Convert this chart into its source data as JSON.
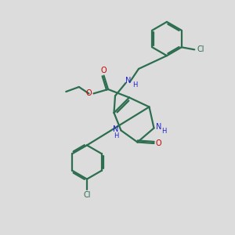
{
  "bg_color": "#dcdcdc",
  "bond_color": "#2d6e50",
  "n_color": "#2222cc",
  "o_color": "#cc0000",
  "cl_color": "#2d6e50",
  "fig_w": 3.0,
  "fig_h": 3.0,
  "dpi": 100,
  "xlim": [
    0,
    10
  ],
  "ylim": [
    0,
    10
  ],
  "lw": 1.6,
  "fs": 7.0,
  "fs_small": 6.0
}
